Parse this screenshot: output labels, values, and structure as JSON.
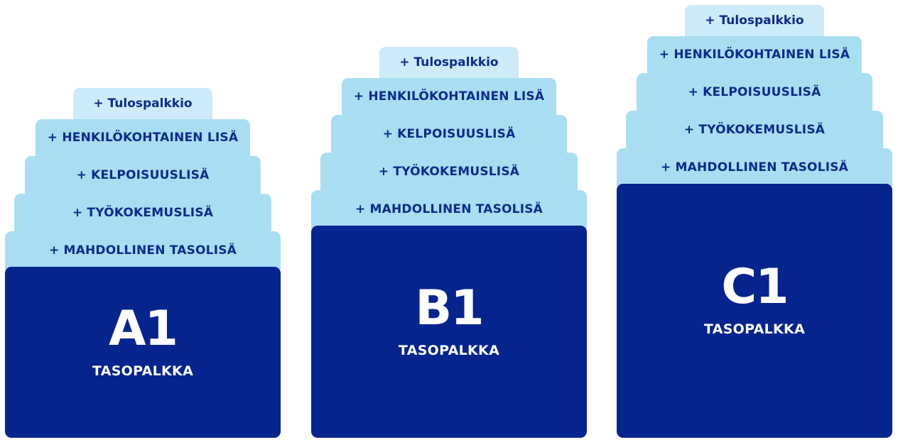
{
  "columns": [
    {
      "level": "A1",
      "base_label": "TASOPALKKA",
      "layers": [
        "+ Tulospalkkio",
        "+ HENKILÖKOHTAINEN LISÄ",
        "+ KELPOISUUSLISÄ",
        "+ TYÖKOKEMUSLISÄ",
        "+ MAHDOLLINEN TASOLISÄ"
      ]
    },
    {
      "level": "B1",
      "base_label": "TASOPALKKA",
      "layers": [
        "+ Tulospalkkio",
        "+ HENKILÖKOHTAINEN LISÄ",
        "+ KELPOISUUSLISÄ",
        "+ TYÖKOKEMUSLISÄ",
        "+ MAHDOLLINEN TASOLISÄ"
      ]
    },
    {
      "level": "C1",
      "base_label": "TASOPALKKA",
      "layers": [
        "+ Tulospalkkio",
        "+ HENKILÖKOHTAINEN LISÄ",
        "+ KELPOISUUSLISÄ",
        "+ TYÖKOKEMUSLISÄ",
        "+ MAHDOLLINEN TASOLISÄ"
      ]
    }
  ],
  "colors": {
    "base": "#05248d",
    "layer": "#a9def2",
    "top_layer": "#cdebf8",
    "text": "#0b2a8c"
  }
}
